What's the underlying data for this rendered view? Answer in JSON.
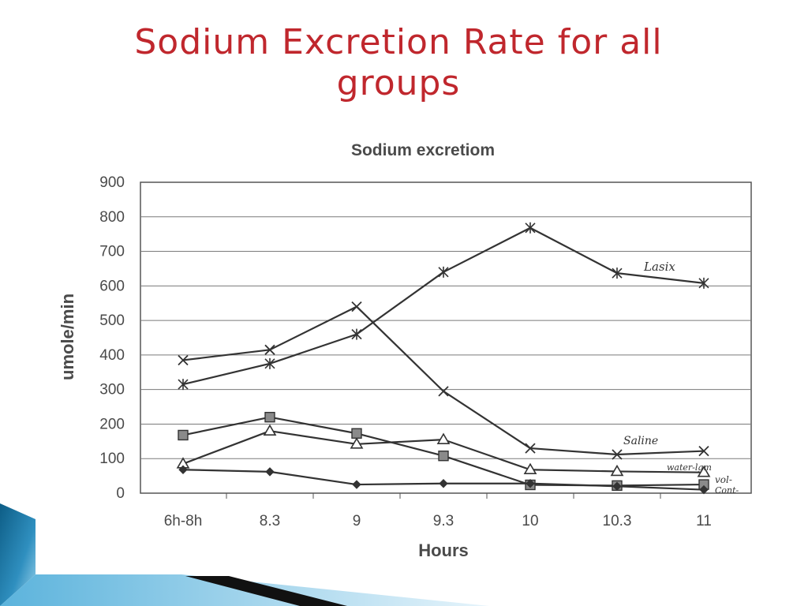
{
  "slide": {
    "title_line1": "Sodium Excretion Rate for all",
    "title_line2": "groups"
  },
  "colors": {
    "title": "#c0272d",
    "accent_dark": "#0d5d86",
    "accent_light": "#7fc7e6",
    "series": "#333333"
  },
  "chart_data": {
    "type": "line",
    "title": "Sodium excretiom",
    "xlabel": "Hours",
    "ylabel": "umole/min",
    "categories": [
      "6h-8h",
      "8.3",
      "9",
      "9.3",
      "10",
      "10.3",
      "11"
    ],
    "ylim": [
      0,
      900
    ],
    "yticks": [
      0,
      100,
      200,
      300,
      400,
      500,
      600,
      700,
      800,
      900
    ],
    "grid": true,
    "series": [
      {
        "name": "Lasix",
        "marker": "asterisk",
        "values": [
          315,
          375,
          460,
          640,
          768,
          637,
          608
        ]
      },
      {
        "name": "Saline",
        "marker": "x",
        "values": [
          385,
          415,
          540,
          295,
          130,
          112,
          122
        ]
      },
      {
        "name": "water-lgm",
        "marker": "triangle",
        "values": [
          85,
          180,
          142,
          155,
          68,
          63,
          60
        ]
      },
      {
        "name": "vol-",
        "marker": "square",
        "values": [
          168,
          220,
          173,
          108,
          24,
          22,
          25
        ]
      },
      {
        "name": "Cont-",
        "marker": "diamond",
        "values": [
          68,
          62,
          25,
          28,
          28,
          20,
          10
        ]
      }
    ]
  }
}
